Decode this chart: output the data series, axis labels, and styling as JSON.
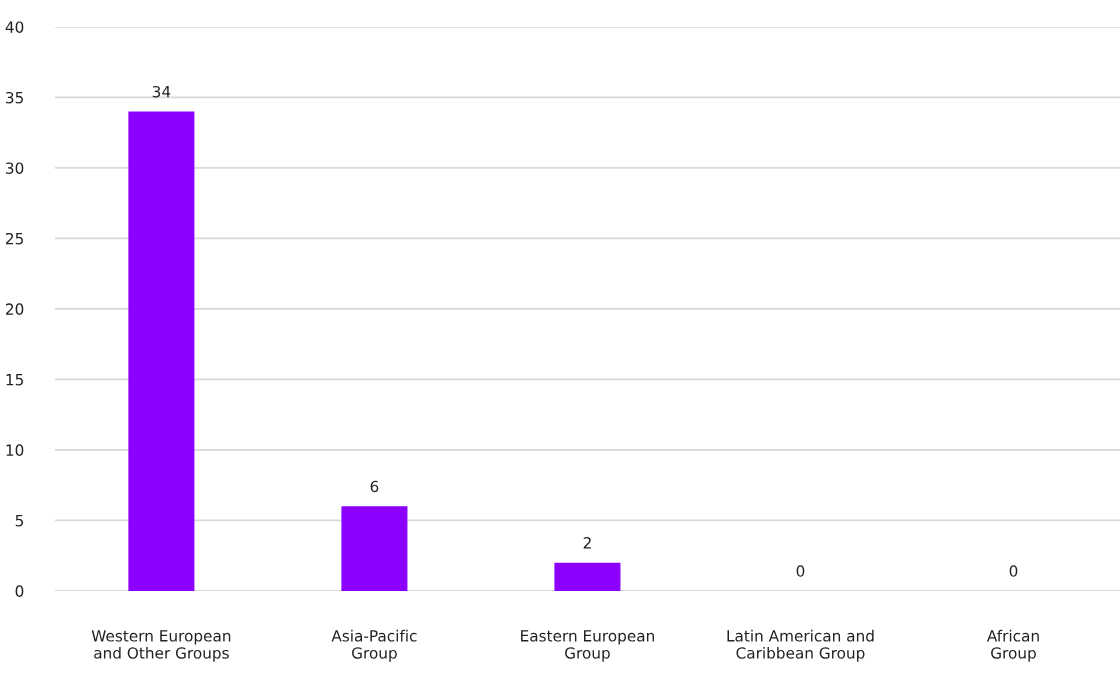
{
  "chart_data": {
    "type": "bar",
    "categories": [
      "Western European\nand Other Groups",
      "Asia-Pacific\nGroup",
      "Eastern European\nGroup",
      "Latin American and\nCaribbean Group",
      "African\nGroup"
    ],
    "values": [
      34,
      6,
      2,
      0,
      0
    ],
    "color": "#8c00ff",
    "ylim": [
      0,
      40
    ],
    "yticks": [
      0,
      5,
      10,
      15,
      20,
      25,
      30,
      35,
      40
    ],
    "grid": "y",
    "data_labels": true,
    "legend": false
  }
}
